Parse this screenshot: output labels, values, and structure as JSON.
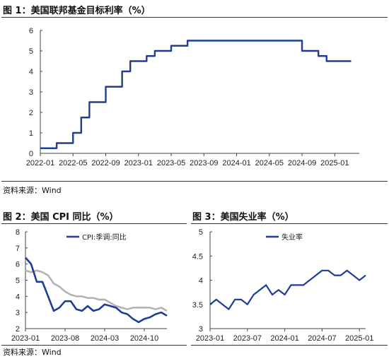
{
  "figure1": {
    "title": "图 1：美国联邦基金目标利率（%）",
    "source": "资料来源：Wind"
  },
  "figure2": {
    "title": "图 2：美国 CPI 同比（%）",
    "source": "资料来源：Wind"
  },
  "figure3": {
    "title": "图 3：美国失业率（%）"
  },
  "colors": {
    "navy": "#1f3c99",
    "gray": "#b3b3b3"
  },
  "chart_data": [
    {
      "type": "line",
      "step": true,
      "x_ticks": [
        "2022-01",
        "2022-05",
        "2022-09",
        "2023-01",
        "2023-05",
        "2023-09",
        "2024-01",
        "2024-05",
        "2024-09",
        "2025-01"
      ],
      "xlim": [
        "2022-01",
        "2025-04"
      ],
      "ylim": [
        0,
        6
      ],
      "y_ticks": [
        0,
        1,
        2,
        3,
        4,
        5,
        6
      ],
      "series": [
        {
          "x": [
            "2022-01",
            "2022-03",
            "2022-05",
            "2022-06",
            "2022-07",
            "2022-09",
            "2022-11",
            "2022-12",
            "2023-02",
            "2023-03",
            "2023-05",
            "2023-07",
            "2024-09",
            "2024-11",
            "2024-12",
            "2025-03"
          ],
          "values": [
            0.25,
            0.5,
            1.0,
            1.75,
            2.5,
            3.25,
            4.0,
            4.5,
            4.75,
            5.0,
            5.25,
            5.5,
            5.0,
            4.75,
            4.5,
            4.5
          ]
        }
      ]
    },
    {
      "type": "line",
      "x_ticks": [
        "2023-01",
        "2023-08",
        "2024-03",
        "2024-10"
      ],
      "xlim": [
        "2023-01",
        "2025-02"
      ],
      "ylim": [
        2,
        8
      ],
      "y_ticks": [
        2,
        3,
        4,
        5,
        6,
        7,
        8
      ],
      "legend": [
        "CPI:季调:同比"
      ],
      "legend_position": "top-left",
      "series": [
        {
          "name": "CPI:季调:同比",
          "x": [
            "2023-01",
            "2023-02",
            "2023-03",
            "2023-04",
            "2023-05",
            "2023-06",
            "2023-07",
            "2023-08",
            "2023-09",
            "2023-10",
            "2023-11",
            "2023-12",
            "2024-01",
            "2024-02",
            "2024-03",
            "2024-04",
            "2024-05",
            "2024-06",
            "2024-07",
            "2024-08",
            "2024-09",
            "2024-10",
            "2024-11",
            "2024-12",
            "2025-01",
            "2025-02"
          ],
          "values": [
            6.4,
            6.0,
            4.9,
            4.9,
            4.0,
            3.1,
            3.3,
            3.7,
            3.7,
            3.2,
            3.1,
            3.4,
            3.1,
            3.2,
            3.5,
            3.4,
            3.3,
            3.0,
            2.9,
            2.6,
            2.4,
            2.6,
            2.7,
            2.9,
            3.0,
            2.8
          ]
        },
        {
          "x": [
            "2023-01",
            "2023-02",
            "2023-03",
            "2023-04",
            "2023-05",
            "2023-06",
            "2023-07",
            "2023-08",
            "2023-09",
            "2023-10",
            "2023-11",
            "2023-12",
            "2024-01",
            "2024-02",
            "2024-03",
            "2024-04",
            "2024-05",
            "2024-06",
            "2024-07",
            "2024-08",
            "2024-09",
            "2024-10",
            "2024-11",
            "2024-12",
            "2025-01",
            "2025-02"
          ],
          "values": [
            5.6,
            5.5,
            5.6,
            5.5,
            5.3,
            4.8,
            4.6,
            4.3,
            4.1,
            4.0,
            4.0,
            3.9,
            3.9,
            3.8,
            3.8,
            3.6,
            3.4,
            3.3,
            3.2,
            3.3,
            3.3,
            3.3,
            3.3,
            3.2,
            3.3,
            3.1
          ]
        }
      ]
    },
    {
      "type": "line",
      "x_ticks": [
        "2023-01",
        "2023-07",
        "2024-01",
        "2024-07",
        "2025-01"
      ],
      "xlim": [
        "2023-01",
        "2025-02"
      ],
      "ylim": [
        3,
        5
      ],
      "y_ticks": [
        3,
        3.5,
        4,
        4.5,
        5
      ],
      "legend": [
        "失业率"
      ],
      "legend_position": "top-left",
      "series": [
        {
          "name": "失业率",
          "x": [
            "2023-01",
            "2023-02",
            "2023-03",
            "2023-04",
            "2023-05",
            "2023-06",
            "2023-07",
            "2023-08",
            "2023-09",
            "2023-10",
            "2023-11",
            "2023-12",
            "2024-01",
            "2024-02",
            "2024-03",
            "2024-04",
            "2024-05",
            "2024-06",
            "2024-07",
            "2024-08",
            "2024-09",
            "2024-10",
            "2024-11",
            "2024-12",
            "2025-01",
            "2025-02"
          ],
          "values": [
            3.5,
            3.6,
            3.5,
            3.4,
            3.6,
            3.6,
            3.5,
            3.7,
            3.8,
            3.9,
            3.7,
            3.8,
            3.7,
            3.9,
            3.9,
            3.9,
            4.0,
            4.1,
            4.2,
            4.2,
            4.1,
            4.1,
            4.2,
            4.1,
            4.0,
            4.1
          ]
        }
      ]
    }
  ]
}
